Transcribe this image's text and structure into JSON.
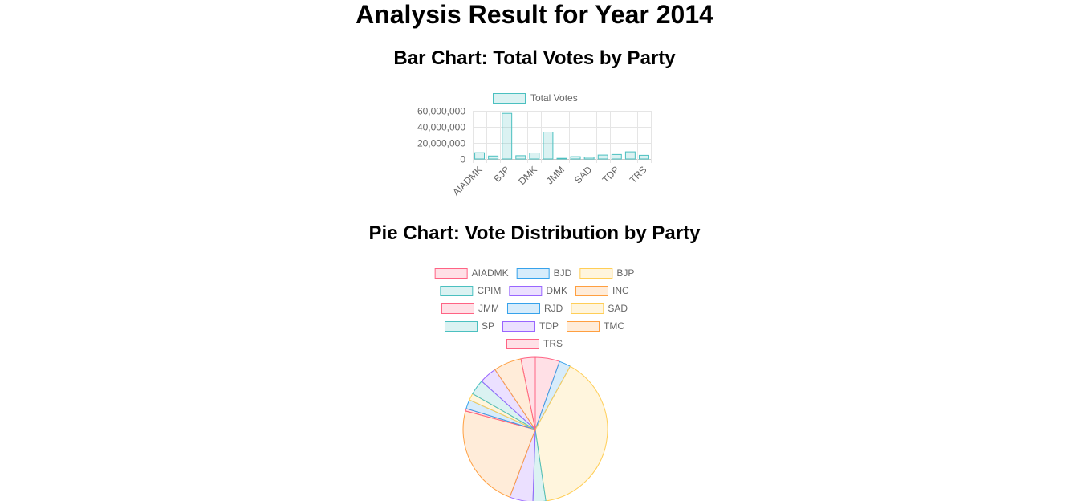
{
  "page": {
    "title": "Analysis Result for Year 2014"
  },
  "charts": {
    "bar_title": "Bar Chart: Total Votes by Party",
    "pie_title": "Pie Chart: Vote Distribution by Party"
  },
  "colors": {
    "border": [
      "#ff6384",
      "#36a2eb",
      "#ffce56",
      "#4bc0c0",
      "#9966ff",
      "#ff9f40"
    ],
    "fill": [
      "rgba(255,99,132,0.2)",
      "rgba(54,162,235,0.2)",
      "rgba(255,206,86,0.2)",
      "rgba(75,192,192,0.2)",
      "rgba(153,102,255,0.2)",
      "rgba(255,159,64,0.2)"
    ]
  },
  "chart_data": [
    {
      "type": "bar",
      "title": "Bar Chart: Total Votes by Party",
      "categories": [
        "AIADMK",
        "BJD",
        "BJP",
        "CPIM",
        "DMK",
        "INC",
        "JMM",
        "RJD",
        "SAD",
        "SP",
        "TDP",
        "TMC",
        "TRS"
      ],
      "tick_labels": [
        "AIADMK",
        "BJP",
        "DMK",
        "JMM",
        "SAD",
        "TDP",
        "TRS"
      ],
      "series": [
        {
          "name": "Total Votes",
          "values": [
            7800000,
            3700000,
            56800000,
            4100000,
            7500000,
            33500000,
            800000,
            2900000,
            2200000,
            4900000,
            5600000,
            8900000,
            4600000
          ]
        }
      ],
      "ylim": [
        0,
        60000000
      ],
      "yticks": [
        "60,000,000",
        "40,000,000",
        "20,000,000",
        "0"
      ],
      "legend": "top",
      "grid": true
    },
    {
      "type": "pie",
      "title": "Pie Chart: Vote Distribution by Party",
      "labels": [
        "AIADMK",
        "BJD",
        "BJP",
        "CPIM",
        "DMK",
        "INC",
        "JMM",
        "RJD",
        "SAD",
        "SP",
        "TDP",
        "TMC",
        "TRS"
      ],
      "values": [
        7800000,
        3700000,
        56800000,
        4100000,
        7500000,
        33500000,
        800000,
        2900000,
        2200000,
        4900000,
        5600000,
        8900000,
        4600000
      ],
      "legend": "top"
    }
  ]
}
